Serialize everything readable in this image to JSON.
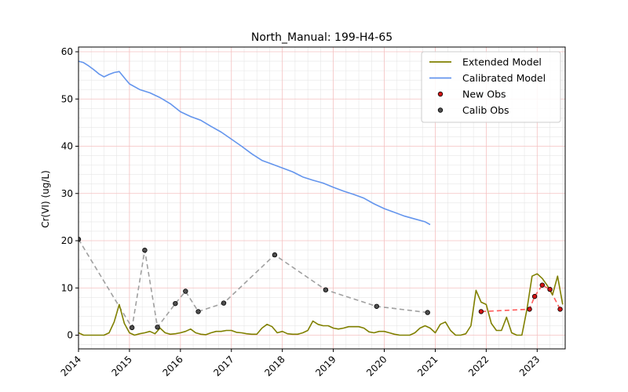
{
  "chart_data": {
    "type": "line",
    "title": "North_Manual: 199-H4-65",
    "xlabel": "",
    "ylabel": "Cr(VI) (ug/L)",
    "xlim": [
      2014.0,
      2023.55
    ],
    "ylim": [
      -2.9,
      61.0
    ],
    "xticks": [
      2014,
      2015,
      2016,
      2017,
      2018,
      2019,
      2020,
      2021,
      2022,
      2023
    ],
    "yticks": [
      0,
      10,
      20,
      30,
      40,
      50,
      60
    ],
    "grid": true,
    "legend_position": "top-right",
    "series": [
      {
        "name": "Extended Model",
        "kind": "line",
        "color": "#808000",
        "x": [
          2014.0,
          2014.1,
          2014.2,
          2014.3,
          2014.4,
          2014.5,
          2014.6,
          2014.7,
          2014.8,
          2014.9,
          2015.0,
          2015.1,
          2015.2,
          2015.3,
          2015.4,
          2015.5,
          2015.6,
          2015.7,
          2015.8,
          2015.9,
          2016.0,
          2016.1,
          2016.2,
          2016.3,
          2016.4,
          2016.5,
          2016.6,
          2016.7,
          2016.8,
          2016.9,
          2017.0,
          2017.1,
          2017.2,
          2017.3,
          2017.4,
          2017.5,
          2017.6,
          2017.7,
          2017.8,
          2017.9,
          2018.0,
          2018.1,
          2018.2,
          2018.3,
          2018.4,
          2018.5,
          2018.6,
          2018.7,
          2018.8,
          2018.9,
          2019.0,
          2019.1,
          2019.2,
          2019.3,
          2019.4,
          2019.5,
          2019.6,
          2019.7,
          2019.8,
          2019.9,
          2020.0,
          2020.1,
          2020.2,
          2020.3,
          2020.4,
          2020.5,
          2020.6,
          2020.7,
          2020.8,
          2020.9,
          2021.0,
          2021.1,
          2021.2,
          2021.3,
          2021.4,
          2021.5,
          2021.6,
          2021.7,
          2021.8,
          2021.9,
          2022.0,
          2022.1,
          2022.2,
          2022.3,
          2022.4,
          2022.5,
          2022.6,
          2022.7,
          2022.8,
          2022.9,
          2023.0,
          2023.1,
          2023.2,
          2023.3,
          2023.4,
          2023.5
        ],
        "y": [
          0.5,
          0.0,
          0.0,
          0.0,
          0.0,
          0.0,
          0.5,
          2.8,
          6.5,
          2.5,
          0.5,
          0.0,
          0.3,
          0.5,
          0.8,
          0.3,
          1.5,
          0.5,
          0.2,
          0.3,
          0.5,
          0.8,
          1.3,
          0.5,
          0.2,
          0.1,
          0.5,
          0.8,
          0.8,
          1.0,
          1.0,
          0.6,
          0.5,
          0.3,
          0.2,
          0.2,
          1.5,
          2.3,
          1.8,
          0.5,
          0.8,
          0.3,
          0.2,
          0.2,
          0.5,
          1.0,
          3.0,
          2.3,
          2.0,
          2.0,
          1.5,
          1.3,
          1.5,
          1.8,
          1.8,
          1.8,
          1.5,
          0.7,
          0.5,
          0.8,
          0.8,
          0.5,
          0.2,
          0.0,
          0.0,
          0.0,
          0.5,
          1.5,
          2.0,
          1.5,
          0.5,
          2.3,
          2.8,
          1.0,
          0.0,
          0.0,
          0.3,
          2.0,
          9.5,
          7.0,
          6.5,
          2.5,
          1.0,
          1.0,
          3.8,
          0.5,
          0.0,
          0.0,
          5.5,
          12.5,
          13.0,
          12.0,
          10.5,
          8.5,
          12.5,
          6.5
        ]
      },
      {
        "name": "Calibrated Model",
        "kind": "line",
        "color": "#6495ED",
        "x": [
          2014.0,
          2014.1,
          2014.2,
          2014.3,
          2014.4,
          2014.5,
          2014.6,
          2014.7,
          2014.8,
          2014.9,
          2015.0,
          2015.2,
          2015.4,
          2015.6,
          2015.8,
          2016.0,
          2016.2,
          2016.4,
          2016.6,
          2016.8,
          2017.0,
          2017.2,
          2017.4,
          2017.6,
          2017.8,
          2018.0,
          2018.2,
          2018.4,
          2018.6,
          2018.8,
          2019.0,
          2019.2,
          2019.4,
          2019.6,
          2019.8,
          2020.0,
          2020.2,
          2020.4,
          2020.6,
          2020.8,
          2020.9
        ],
        "y": [
          58.0,
          57.7,
          57.0,
          56.2,
          55.3,
          54.7,
          55.2,
          55.6,
          55.8,
          54.5,
          53.2,
          52.0,
          51.3,
          50.3,
          49.0,
          47.3,
          46.3,
          45.5,
          44.2,
          43.0,
          41.5,
          40.0,
          38.4,
          37.0,
          36.2,
          35.4,
          34.6,
          33.5,
          32.8,
          32.2,
          31.3,
          30.5,
          29.8,
          29.0,
          27.8,
          26.8,
          26.0,
          25.2,
          24.6,
          24.0,
          23.4
        ]
      },
      {
        "name": "New Obs",
        "kind": "scatter",
        "color": "#d21414",
        "x": [
          2021.9,
          2022.85,
          2022.95,
          2023.1,
          2023.25,
          2023.45
        ],
        "y": [
          5.0,
          5.5,
          8.2,
          10.6,
          9.7,
          5.5
        ]
      },
      {
        "name": "Calib Obs",
        "kind": "scatter",
        "color": "#505050",
        "x": [
          2014.0,
          2015.05,
          2015.3,
          2015.55,
          2015.9,
          2016.1,
          2016.35,
          2016.85,
          2017.85,
          2018.85,
          2019.85,
          2020.85
        ],
        "y": [
          20.3,
          1.6,
          18.0,
          1.7,
          6.7,
          9.3,
          5.0,
          6.8,
          17.0,
          9.6,
          6.1,
          4.8
        ]
      }
    ],
    "annotations": [
      {
        "kind": "dashed-line",
        "color": "#a0a0a0",
        "follows": "Calib Obs"
      },
      {
        "kind": "dashed-line",
        "color": "#ff5a5a",
        "follows": "New Obs"
      }
    ]
  }
}
